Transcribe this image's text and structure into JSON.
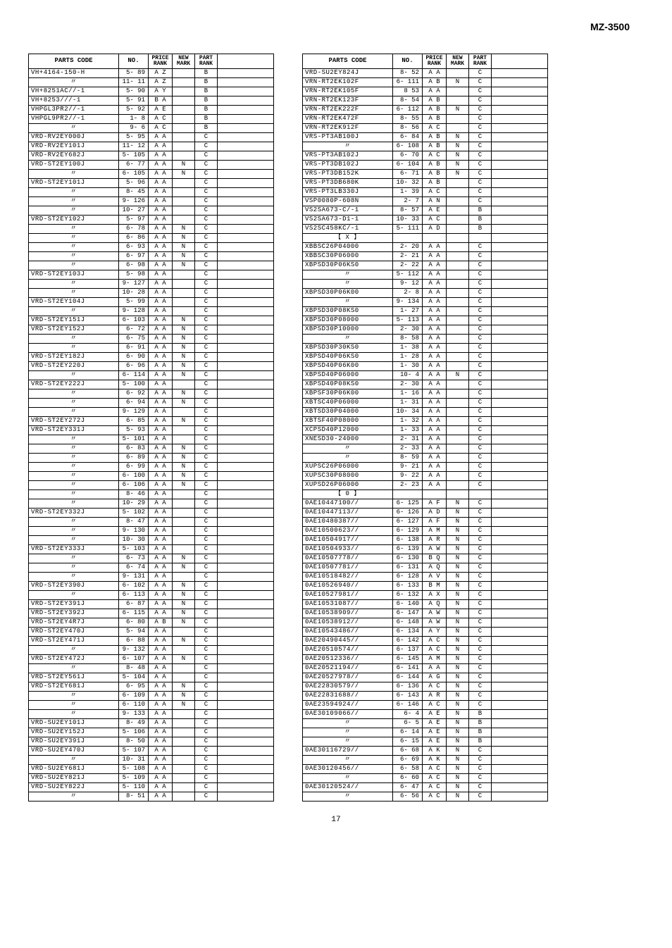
{
  "header": "MZ-3500",
  "pageNumber": "17",
  "tableHeaders": {
    "code": "PARTS CODE",
    "no": "NO.",
    "price": "PRICE\nRANK",
    "new": "NEW\nMARK",
    "part": "PART\nRANK",
    "desc": ""
  },
  "leftTable": [
    {
      "code": "VH+4164-150-H",
      "no": "5- 89",
      "price": "A Z",
      "new": "",
      "part": "B"
    },
    {
      "code": "〃",
      "no": "11- 11",
      "price": "A Z",
      "new": "",
      "part": "B"
    },
    {
      "code": "VH+8251AC//-1",
      "no": "5- 90",
      "price": "A Y",
      "new": "",
      "part": "B"
    },
    {
      "code": "VH+8253///-1",
      "no": "5- 91",
      "price": "B A",
      "new": "",
      "part": "B"
    },
    {
      "code": "VHPGL3PR2//-1",
      "no": "5- 92",
      "price": "A E",
      "new": "",
      "part": "B"
    },
    {
      "code": "VHPGL9PR2//-1",
      "no": "1- 8",
      "price": "A C",
      "new": "",
      "part": "B"
    },
    {
      "code": "〃",
      "no": "9- 6",
      "price": "A C",
      "new": "",
      "part": "B"
    },
    {
      "code": "VRD-RV2EY000J",
      "no": "5- 95",
      "price": "A A",
      "new": "",
      "part": "C"
    },
    {
      "code": "VRD-RV2EY101J",
      "no": "11- 12",
      "price": "A A",
      "new": "",
      "part": "C"
    },
    {
      "code": "VRD-RV2EY682J",
      "no": "5- 105",
      "price": "A A",
      "new": "",
      "part": "C"
    },
    {
      "code": "VRD-ST2EY100J",
      "no": "6- 77",
      "price": "A A",
      "new": "N",
      "part": "C"
    },
    {
      "code": "〃",
      "no": "6- 105",
      "price": "A A",
      "new": "N",
      "part": "C"
    },
    {
      "code": "VRD-ST2EY101J",
      "no": "5- 96",
      "price": "A A",
      "new": "",
      "part": "C"
    },
    {
      "code": "〃",
      "no": "8- 45",
      "price": "A A",
      "new": "",
      "part": "C"
    },
    {
      "code": "〃",
      "no": "9- 126",
      "price": "A A",
      "new": "",
      "part": "C"
    },
    {
      "code": "〃",
      "no": "10- 27",
      "price": "A A",
      "new": "",
      "part": "C"
    },
    {
      "code": "VRD-ST2EY102J",
      "no": "5- 97",
      "price": "A A",
      "new": "",
      "part": "C"
    },
    {
      "code": "〃",
      "no": "6- 78",
      "price": "A A",
      "new": "N",
      "part": "C"
    },
    {
      "code": "〃",
      "no": "6- 86",
      "price": "A A",
      "new": "N",
      "part": "C"
    },
    {
      "code": "〃",
      "no": "6- 93",
      "price": "A A",
      "new": "N",
      "part": "C"
    },
    {
      "code": "〃",
      "no": "6- 97",
      "price": "A A",
      "new": "N",
      "part": "C"
    },
    {
      "code": "〃",
      "no": "6- 98",
      "price": "A A",
      "new": "N",
      "part": "C"
    },
    {
      "code": "VRD-ST2EY103J",
      "no": "5- 98",
      "price": "A A",
      "new": "",
      "part": "C"
    },
    {
      "code": "〃",
      "no": "9- 127",
      "price": "A A",
      "new": "",
      "part": "C"
    },
    {
      "code": "〃",
      "no": "10- 28",
      "price": "A A",
      "new": "",
      "part": "C"
    },
    {
      "code": "VRD-ST2EY104J",
      "no": "5- 99",
      "price": "A A",
      "new": "",
      "part": "C"
    },
    {
      "code": "〃",
      "no": "9- 128",
      "price": "A A",
      "new": "",
      "part": "C"
    },
    {
      "code": "VRD-ST2EY151J",
      "no": "6- 103",
      "price": "A A",
      "new": "N",
      "part": "C"
    },
    {
      "code": "VRD-ST2EY152J",
      "no": "6- 72",
      "price": "A A",
      "new": "N",
      "part": "C"
    },
    {
      "code": "〃",
      "no": "6- 75",
      "price": "A A",
      "new": "N",
      "part": "C"
    },
    {
      "code": "〃",
      "no": "6- 91",
      "price": "A A",
      "new": "N",
      "part": "C"
    },
    {
      "code": "VRD-ST2EY182J",
      "no": "6- 90",
      "price": "A A",
      "new": "N",
      "part": "C"
    },
    {
      "code": "VRD-ST2EY220J",
      "no": "6- 96",
      "price": "A A",
      "new": "N",
      "part": "C"
    },
    {
      "code": "〃",
      "no": "6- 114",
      "price": "A A",
      "new": "N",
      "part": "C"
    },
    {
      "code": "VRD-ST2EY222J",
      "no": "5- 100",
      "price": "A A",
      "new": "",
      "part": "C"
    },
    {
      "code": "〃",
      "no": "6- 92",
      "price": "A A",
      "new": "N",
      "part": "C"
    },
    {
      "code": "〃",
      "no": "6- 94",
      "price": "A A",
      "new": "N",
      "part": "C"
    },
    {
      "code": "〃",
      "no": "9- 129",
      "price": "A A",
      "new": "",
      "part": "C"
    },
    {
      "code": "VRD-ST2EY272J",
      "no": "6- 85",
      "price": "A A",
      "new": "N",
      "part": "C"
    },
    {
      "code": "VRD-ST2EY331J",
      "no": "5- 93",
      "price": "A A",
      "new": "",
      "part": "C"
    },
    {
      "code": "〃",
      "no": "5- 101",
      "price": "A A",
      "new": "",
      "part": "C"
    },
    {
      "code": "〃",
      "no": "6- 83",
      "price": "A A",
      "new": "N",
      "part": "C"
    },
    {
      "code": "〃",
      "no": "6- 89",
      "price": "A A",
      "new": "N",
      "part": "C"
    },
    {
      "code": "〃",
      "no": "6- 99",
      "price": "A A",
      "new": "N",
      "part": "C"
    },
    {
      "code": "〃",
      "no": "6- 100",
      "price": "A A",
      "new": "N",
      "part": "C"
    },
    {
      "code": "〃",
      "no": "6- 106",
      "price": "A A",
      "new": "N",
      "part": "C"
    },
    {
      "code": "〃",
      "no": "8- 46",
      "price": "A A",
      "new": "",
      "part": "C"
    },
    {
      "code": "〃",
      "no": "10- 29",
      "price": "A A",
      "new": "",
      "part": "C"
    },
    {
      "code": "VRD-ST2EY332J",
      "no": "5- 102",
      "price": "A A",
      "new": "",
      "part": "C"
    },
    {
      "code": "〃",
      "no": "8- 47",
      "price": "A A",
      "new": "",
      "part": "C"
    },
    {
      "code": "〃",
      "no": "9- 130",
      "price": "A A",
      "new": "",
      "part": "C"
    },
    {
      "code": "〃",
      "no": "10- 30",
      "price": "A A",
      "new": "",
      "part": "C"
    },
    {
      "code": "VRD-ST2EY333J",
      "no": "5- 103",
      "price": "A A",
      "new": "",
      "part": "C"
    },
    {
      "code": "〃",
      "no": "6- 73",
      "price": "A A",
      "new": "N",
      "part": "C"
    },
    {
      "code": "〃",
      "no": "6- 74",
      "price": "A A",
      "new": "N",
      "part": "C"
    },
    {
      "code": "〃",
      "no": "9- 131",
      "price": "A A",
      "new": "",
      "part": "C"
    },
    {
      "code": "VRD-ST2EY390J",
      "no": "6- 102",
      "price": "A A",
      "new": "N",
      "part": "C"
    },
    {
      "code": "〃",
      "no": "6- 113",
      "price": "A A",
      "new": "N",
      "part": "C"
    },
    {
      "code": "VRD-ST2EY391J",
      "no": "6- 87",
      "price": "A A",
      "new": "N",
      "part": "C"
    },
    {
      "code": "VRD-ST2EY392J",
      "no": "6- 115",
      "price": "A A",
      "new": "N",
      "part": "C"
    },
    {
      "code": "VRD-ST2EY4R7J",
      "no": "6- 80",
      "price": "A B",
      "new": "N",
      "part": "C"
    },
    {
      "code": "VRD-ST2EY470J",
      "no": "5- 94",
      "price": "A A",
      "new": "",
      "part": "C"
    },
    {
      "code": "VRD-ST2EY471J",
      "no": "6- 88",
      "price": "A A",
      "new": "N",
      "part": "C"
    },
    {
      "code": "〃",
      "no": "9- 132",
      "price": "A A",
      "new": "",
      "part": "C"
    },
    {
      "code": "VRD-ST2EY472J",
      "no": "6- 107",
      "price": "A A",
      "new": "N",
      "part": "C"
    },
    {
      "code": "〃",
      "no": "8- 48",
      "price": "A A",
      "new": "",
      "part": "C"
    },
    {
      "code": "VRD-ST2EY561J",
      "no": "5- 104",
      "price": "A A",
      "new": "",
      "part": "C"
    },
    {
      "code": "VRD-ST2EY681J",
      "no": "6- 95",
      "price": "A A",
      "new": "N",
      "part": "C"
    },
    {
      "code": "〃",
      "no": "6- 109",
      "price": "A A",
      "new": "N",
      "part": "C"
    },
    {
      "code": "〃",
      "no": "6- 110",
      "price": "A A",
      "new": "N",
      "part": "C"
    },
    {
      "code": "〃",
      "no": "9- 133",
      "price": "A A",
      "new": "",
      "part": "C"
    },
    {
      "code": "VRD-SU2EY101J",
      "no": "8- 49",
      "price": "A A",
      "new": "",
      "part": "C"
    },
    {
      "code": "VRD-SU2EY152J",
      "no": "5- 106",
      "price": "A A",
      "new": "",
      "part": "C"
    },
    {
      "code": "VRD-SU2EY391J",
      "no": "8- 50",
      "price": "A A",
      "new": "",
      "part": "C"
    },
    {
      "code": "VRD-SU2EY470J",
      "no": "5- 107",
      "price": "A A",
      "new": "",
      "part": "C"
    },
    {
      "code": "〃",
      "no": "10- 31",
      "price": "A A",
      "new": "",
      "part": "C"
    },
    {
      "code": "VRD-SU2EY681J",
      "no": "5- 108",
      "price": "A A",
      "new": "",
      "part": "C"
    },
    {
      "code": "VRD-SU2EY821J",
      "no": "5- 109",
      "price": "A A",
      "new": "",
      "part": "C"
    },
    {
      "code": "VRD-SU2EY822J",
      "no": "5- 110",
      "price": "A A",
      "new": "",
      "part": "C"
    },
    {
      "code": "〃",
      "no": "8- 51",
      "price": "A A",
      "new": "",
      "part": "C"
    }
  ],
  "rightTable": [
    {
      "code": "VRD-SU2EY824J",
      "no": "8- 52",
      "price": "A A",
      "new": "",
      "part": "C"
    },
    {
      "code": "VRN-RT2EK102F",
      "no": "6- 111",
      "price": "A B",
      "new": "N",
      "part": "C"
    },
    {
      "code": "VRN-RT2EK105F",
      "no": "8  53",
      "price": "A A",
      "new": "",
      "part": "C"
    },
    {
      "code": "VRN-RT2EK123F",
      "no": "8- 54",
      "price": "A B",
      "new": "",
      "part": "C"
    },
    {
      "code": "VRN-RT2EK222F",
      "no": "6- 112",
      "price": "A B",
      "new": "N",
      "part": "C"
    },
    {
      "code": "VRN-RT2EK472F",
      "no": "8- 55",
      "price": "A B",
      "new": "",
      "part": "C"
    },
    {
      "code": "VRN-RT2EK912F",
      "no": "8- 56",
      "price": "A C",
      "new": "",
      "part": "C"
    },
    {
      "code": "VRS-PT3AB100J",
      "no": "6- 84",
      "price": "A B",
      "new": "N",
      "part": "C"
    },
    {
      "code": "〃",
      "no": "6- 108",
      "price": "A B",
      "new": "N",
      "part": "C"
    },
    {
      "code": "VRS-PT3AB102J",
      "no": "6- 70",
      "price": "A C",
      "new": "N",
      "part": "C"
    },
    {
      "code": "VRS-PT3DB102J",
      "no": "6- 104",
      "price": "A B",
      "new": "N",
      "part": "C"
    },
    {
      "code": "VRS-PT3DB152K",
      "no": "6- 71",
      "price": "A B",
      "new": "N",
      "part": "C"
    },
    {
      "code": "VRS-PT3DB680K",
      "no": "10- 32",
      "price": "A B",
      "new": "",
      "part": "C"
    },
    {
      "code": "VRS-PT3LB330J",
      "no": "1- 39",
      "price": "A C",
      "new": "",
      "part": "C"
    },
    {
      "code": "VSP0080P-608N",
      "no": "2- 7",
      "price": "A N",
      "new": "",
      "part": "C"
    },
    {
      "code": "VS2SA673-C/-1",
      "no": "8- 57",
      "price": "A E",
      "new": "",
      "part": "B"
    },
    {
      "code": "VS2SA673-D1-1",
      "no": "10- 33",
      "price": "A C",
      "new": "",
      "part": "B"
    },
    {
      "code": "VS2SC458KC/-1",
      "no": "5- 111",
      "price": "A D",
      "new": "",
      "part": "B"
    },
    {
      "code": "【 X 】",
      "no": "",
      "price": "",
      "new": "",
      "part": "",
      "section": true
    },
    {
      "code": "XBBSC26P04000",
      "no": "2- 20",
      "price": "A A",
      "new": "",
      "part": "C"
    },
    {
      "code": "XBBSC30P06000",
      "no": "2- 21",
      "price": "A A",
      "new": "",
      "part": "C"
    },
    {
      "code": "XBPSD30P06KS0",
      "no": "2- 22",
      "price": "A A",
      "new": "",
      "part": "C"
    },
    {
      "code": "〃",
      "no": "5- 112",
      "price": "A A",
      "new": "",
      "part": "C"
    },
    {
      "code": "〃",
      "no": "9- 12",
      "price": "A A",
      "new": "",
      "part": "C"
    },
    {
      "code": "XBPSD30P06K00",
      "no": "2- 8",
      "price": "A A",
      "new": "",
      "part": "C"
    },
    {
      "code": "〃",
      "no": "9- 134",
      "price": "A A",
      "new": "",
      "part": "C"
    },
    {
      "code": "XBPSD30P08KS0",
      "no": "1- 27",
      "price": "A A",
      "new": "",
      "part": "C"
    },
    {
      "code": "XBPSD30P08000",
      "no": "5- 113",
      "price": "A A",
      "new": "",
      "part": "C"
    },
    {
      "code": "XBPSD30P10000",
      "no": "2- 30",
      "price": "A A",
      "new": "",
      "part": "C"
    },
    {
      "code": "〃",
      "no": "8- 58",
      "price": "A A",
      "new": "",
      "part": "C"
    },
    {
      "code": "XBPSD30P30KS0",
      "no": "1- 38",
      "price": "A A",
      "new": "",
      "part": "C"
    },
    {
      "code": "XBPSD40P06KS0",
      "no": "1- 28",
      "price": "A A",
      "new": "",
      "part": "C"
    },
    {
      "code": "XBPSD40P06K00",
      "no": "1- 30",
      "price": "A A",
      "new": "",
      "part": "C"
    },
    {
      "code": "XBPSD40P06000",
      "no": "10- 4",
      "price": "A A",
      "new": "N",
      "part": "C"
    },
    {
      "code": "XBPSD40P08KS0",
      "no": "2- 30",
      "price": "A A",
      "new": "",
      "part": "C"
    },
    {
      "code": "XBPSF30P06K00",
      "no": "1- 16",
      "price": "A A",
      "new": "",
      "part": "C"
    },
    {
      "code": "XBTSC40P06000",
      "no": "1- 31",
      "price": "A A",
      "new": "",
      "part": "C"
    },
    {
      "code": "XBTSD30P04000",
      "no": "10- 34",
      "price": "A A",
      "new": "",
      "part": "C"
    },
    {
      "code": "XBTSF40P08000",
      "no": "1- 32",
      "price": "A A",
      "new": "",
      "part": "C"
    },
    {
      "code": "XCPSD40P12000",
      "no": "1- 33",
      "price": "A A",
      "new": "",
      "part": "C"
    },
    {
      "code": "XNESD30-24000",
      "no": "2- 31",
      "price": "A A",
      "new": "",
      "part": "C"
    },
    {
      "code": "〃",
      "no": "2- 33",
      "price": "A A",
      "new": "",
      "part": "C"
    },
    {
      "code": "〃",
      "no": "8- 59",
      "price": "A A",
      "new": "",
      "part": "C"
    },
    {
      "code": "XUPSC26P06000",
      "no": "9- 21",
      "price": "A A",
      "new": "",
      "part": "C"
    },
    {
      "code": "XUPSC30P08000",
      "no": "9- 22",
      "price": "A A",
      "new": "",
      "part": "C"
    },
    {
      "code": "XUPSD26P06000",
      "no": "2- 23",
      "price": "A A",
      "new": "",
      "part": "C"
    },
    {
      "code": "【 0 】",
      "no": "",
      "price": "",
      "new": "",
      "part": "",
      "section": true
    },
    {
      "code": "0AE10447100//",
      "no": "6- 125",
      "price": "A F",
      "new": "N",
      "part": "C"
    },
    {
      "code": "0AE10447113//",
      "no": "6- 126",
      "price": "A D",
      "new": "N",
      "part": "C"
    },
    {
      "code": "0AE10480387//",
      "no": "6- 127",
      "price": "A F",
      "new": "N",
      "part": "C"
    },
    {
      "code": "0AE10500623//",
      "no": "6- 129",
      "price": "A M",
      "new": "N",
      "part": "C"
    },
    {
      "code": "0AE10504917//",
      "no": "6- 138",
      "price": "A R",
      "new": "N",
      "part": "C"
    },
    {
      "code": "0AE10504933//",
      "no": "6- 139",
      "price": "A W",
      "new": "N",
      "part": "C"
    },
    {
      "code": "0AE10507778//",
      "no": "6- 130",
      "price": "B Q",
      "new": "N",
      "part": "C"
    },
    {
      "code": "0AE10507781//",
      "no": "6- 131",
      "price": "A Q",
      "new": "N",
      "part": "C"
    },
    {
      "code": "0AE10518482//",
      "no": "6- 128",
      "price": "A V",
      "new": "N",
      "part": "C"
    },
    {
      "code": "0AE10526940//",
      "no": "6- 133",
      "price": "B M",
      "new": "N",
      "part": "C"
    },
    {
      "code": "0AE10527981//",
      "no": "6- 132",
      "price": "A X",
      "new": "N",
      "part": "C"
    },
    {
      "code": "0AE10531087//",
      "no": "6- 140",
      "price": "A Q",
      "new": "N",
      "part": "C"
    },
    {
      "code": "0AE10538909//",
      "no": "6- 147",
      "price": "A W",
      "new": "N",
      "part": "C"
    },
    {
      "code": "0AE10538912//",
      "no": "6- 148",
      "price": "A W",
      "new": "N",
      "part": "C"
    },
    {
      "code": "0AE10543486//",
      "no": "6- 134",
      "price": "A Y",
      "new": "N",
      "part": "C"
    },
    {
      "code": "0AE20490445//",
      "no": "6- 142",
      "price": "A C",
      "new": "N",
      "part": "C"
    },
    {
      "code": "0AE20510574//",
      "no": "6- 137",
      "price": "A C",
      "new": "N",
      "part": "C"
    },
    {
      "code": "0AE20512336//",
      "no": "6- 145",
      "price": "A M",
      "new": "N",
      "part": "C"
    },
    {
      "code": "0AE20521194//",
      "no": "6- 141",
      "price": "A A",
      "new": "N",
      "part": "C"
    },
    {
      "code": "0AE20527978//",
      "no": "6- 144",
      "price": "A G",
      "new": "N",
      "part": "C"
    },
    {
      "code": "0AE22830579//",
      "no": "6- 136",
      "price": "A C",
      "new": "N",
      "part": "C"
    },
    {
      "code": "0AE22831688//",
      "no": "6- 143",
      "price": "A R",
      "new": "N",
      "part": "C"
    },
    {
      "code": "0AE23594924//",
      "no": "6- 146",
      "price": "A C",
      "new": "N",
      "part": "C"
    },
    {
      "code": "0AE30109066//",
      "no": "6- 4",
      "price": "A E",
      "new": "N",
      "part": "B"
    },
    {
      "code": "〃",
      "no": "6- 5",
      "price": "A E",
      "new": "N",
      "part": "B"
    },
    {
      "code": "〃",
      "no": "6- 14",
      "price": "A E",
      "new": "N",
      "part": "B"
    },
    {
      "code": "〃",
      "no": "6- 15",
      "price": "A E",
      "new": "N",
      "part": "B"
    },
    {
      "code": "0AE30116729//",
      "no": "6- 68",
      "price": "A K",
      "new": "N",
      "part": "C"
    },
    {
      "code": "〃",
      "no": "6- 69",
      "price": "A K",
      "new": "N",
      "part": "C"
    },
    {
      "code": "0AE30120456//",
      "no": "6- 58",
      "price": "A C",
      "new": "N",
      "part": "C"
    },
    {
      "code": "〃",
      "no": "6- 60",
      "price": "A C",
      "new": "N",
      "part": "C"
    },
    {
      "code": "0AE30120524//",
      "no": "6- 47",
      "price": "A C",
      "new": "N",
      "part": "C"
    },
    {
      "code": "〃",
      "no": "6- 56",
      "price": "A C",
      "new": "N",
      "part": "C"
    }
  ]
}
